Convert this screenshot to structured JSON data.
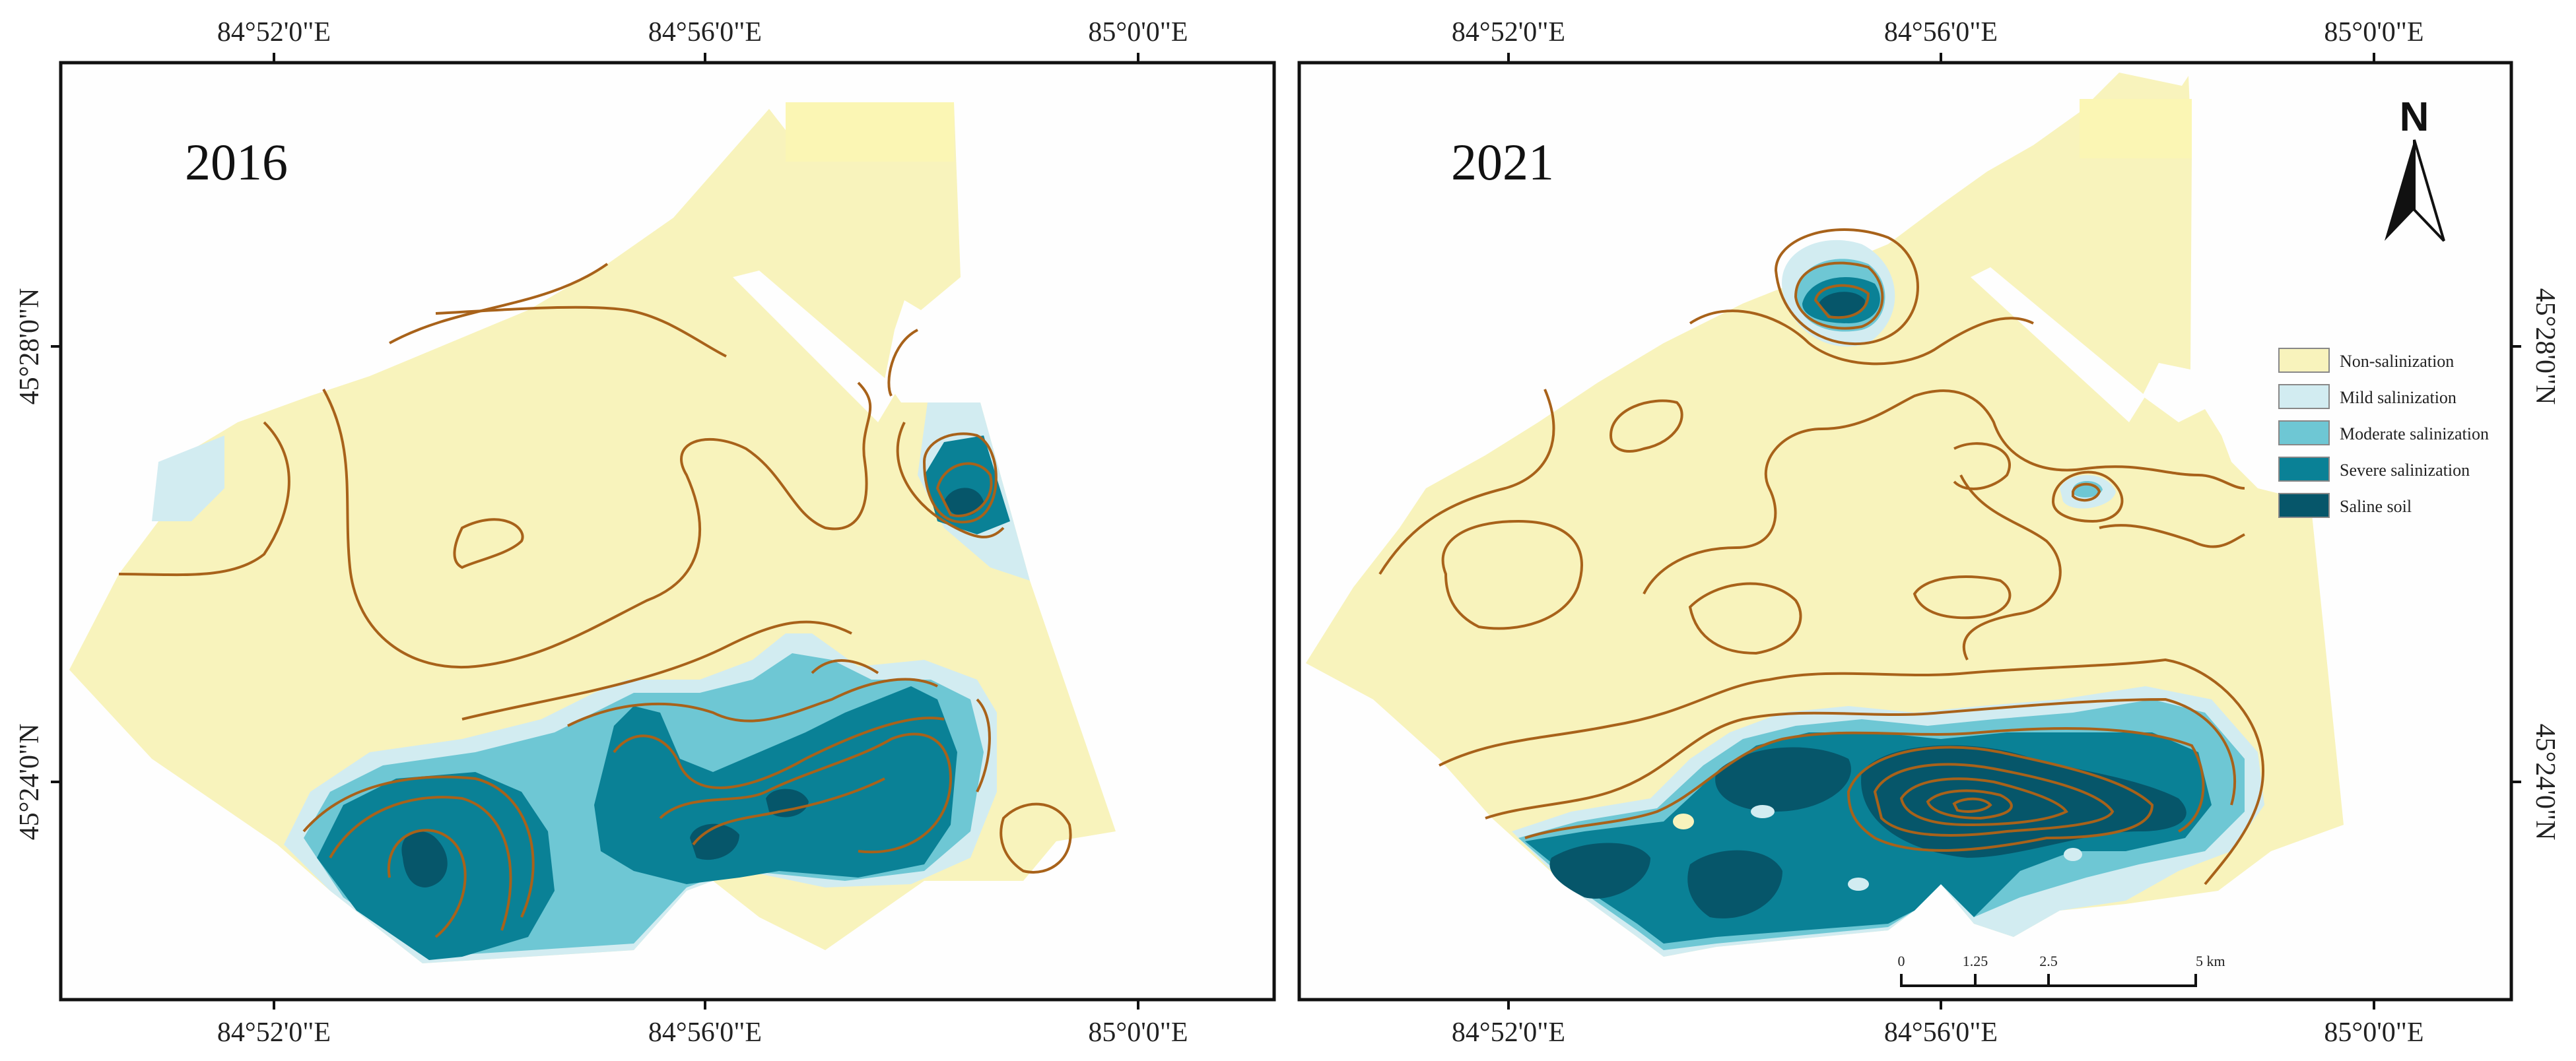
{
  "maps": [
    {
      "year": "2016",
      "lon_ticks_top": [
        "84°52'0\"E",
        "84°56'0\"E",
        "85°0'0\"E"
      ],
      "lon_ticks_bottom": [
        "84°52'0\"E",
        "84°56'0\"E",
        "85°0'0\"E"
      ],
      "lat_ticks_left": [
        "45°28'0\"N",
        "45°24'0\"N"
      ]
    },
    {
      "year": "2021",
      "lon_ticks_top": [
        "84°52'0\"E",
        "84°56'0\"E",
        "85°0'0\"E"
      ],
      "lon_ticks_bottom": [
        "84°52'0\"E",
        "84°56'0\"E",
        "85°0'0\"E"
      ],
      "lat_ticks_right": [
        "45°28'0\"N",
        "45°24'0\"N"
      ]
    }
  ],
  "legend": [
    {
      "label": "Non-salinization",
      "color": "#f8f3bc"
    },
    {
      "label": "Mild salinization",
      "color": "#d2ecf1"
    },
    {
      "label": "Moderate salinization",
      "color": "#6ec7d4"
    },
    {
      "label": "Severe salinization",
      "color": "#0a8196"
    },
    {
      "label": "Saline soil",
      "color": "#06566a"
    }
  ],
  "north_arrow": {
    "label": "N",
    "icon": "north-arrow-icon"
  },
  "scale_bar": {
    "ticks": [
      "0",
      "1.25",
      "2.5",
      "5 km"
    ]
  },
  "colors": {
    "isoline": "#a8621a",
    "frame": "#111111"
  }
}
